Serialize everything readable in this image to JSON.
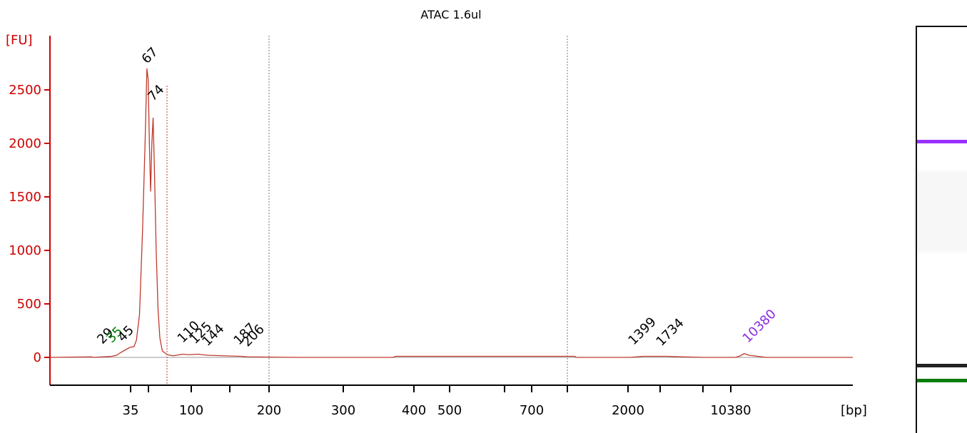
{
  "chart_data": {
    "type": "line",
    "title": "ATAC 1.6ul",
    "ylabel": "[FU]",
    "xlabel": "[bp]",
    "ylim": [
      -250,
      2800
    ],
    "yticks": [
      0,
      500,
      1000,
      1500,
      2000,
      2500
    ],
    "ytick_labels": [
      "0",
      "500",
      "1000",
      "1500",
      "2000",
      "2500"
    ],
    "x_tick_labels": [
      "35",
      "100",
      "200",
      "300",
      "400",
      "500",
      "700",
      "2000",
      "10380"
    ],
    "x_minor_ticks": 5,
    "series": [
      {
        "color": "#c0392b",
        "points": [
          [
            0,
            0
          ],
          [
            68,
            5
          ],
          [
            70,
            0
          ],
          [
            85,
            5
          ],
          [
            100,
            10
          ],
          [
            108,
            20
          ],
          [
            113,
            40
          ],
          [
            122,
            70
          ],
          [
            130,
            95
          ],
          [
            136,
            100
          ],
          [
            140,
            160
          ],
          [
            145,
            400
          ],
          [
            150,
            1200
          ],
          [
            154,
            2000
          ],
          [
            157,
            2700
          ],
          [
            159,
            2600
          ],
          [
            161,
            2000
          ],
          [
            163,
            1550
          ],
          [
            165,
            2000
          ],
          [
            167,
            2240
          ],
          [
            169,
            1800
          ],
          [
            172,
            1000
          ],
          [
            175,
            450
          ],
          [
            178,
            180
          ],
          [
            182,
            60
          ],
          [
            190,
            25
          ],
          [
            200,
            15
          ],
          [
            215,
            30
          ],
          [
            225,
            25
          ],
          [
            240,
            30
          ],
          [
            255,
            20
          ],
          [
            280,
            15
          ],
          [
            310,
            10
          ],
          [
            320,
            5
          ],
          [
            400,
            0
          ],
          [
            555,
            0
          ],
          [
            560,
            10
          ],
          [
            850,
            10
          ],
          [
            852,
            0
          ],
          [
            940,
            0
          ],
          [
            960,
            10
          ],
          [
            1000,
            10
          ],
          [
            1025,
            5
          ],
          [
            1060,
            0
          ],
          [
            1110,
            0
          ],
          [
            1118,
            15
          ],
          [
            1124,
            35
          ],
          [
            1132,
            20
          ],
          [
            1160,
            0
          ],
          [
            1300,
            0
          ]
        ]
      }
    ],
    "peaks": [
      {
        "label": "29",
        "x": 85,
        "y": 80,
        "color": "#000000"
      },
      {
        "label": "35",
        "x": 100,
        "y": 90,
        "color": "#008000"
      },
      {
        "label": "45",
        "x": 118,
        "y": 100,
        "color": "#000000"
      },
      {
        "label": "67",
        "x": 157,
        "y": 2700,
        "color": "#000000"
      },
      {
        "label": "74",
        "x": 167,
        "y": 2350,
        "color": "#000000"
      },
      {
        "label": "110",
        "x": 215,
        "y": 90,
        "color": "#000000"
      },
      {
        "label": "125",
        "x": 235,
        "y": 80,
        "color": "#000000"
      },
      {
        "label": "144",
        "x": 255,
        "y": 60,
        "color": "#000000"
      },
      {
        "label": "187",
        "x": 306,
        "y": 70,
        "color": "#000000"
      },
      {
        "label": "206",
        "x": 320,
        "y": 55,
        "color": "#000000"
      },
      {
        "label": "1399",
        "x": 945,
        "y": 70,
        "color": "#000000"
      },
      {
        "label": "1734",
        "x": 990,
        "y": 60,
        "color": "#000000"
      },
      {
        "label": "10380",
        "x": 1130,
        "y": 90,
        "color": "#8a2be2"
      }
    ],
    "markers": [
      {
        "label": "35",
        "x": 100,
        "color": "#008000"
      },
      {
        "label": "10380",
        "x": 1124,
        "color": "#8a2be2"
      }
    ],
    "grid": false
  },
  "gel": {
    "bands": [
      {
        "name": "upper-marker",
        "color": "#9b30ff",
        "position": 0.277
      },
      {
        "name": "sample-band",
        "color": "#222222",
        "position": 0.826
      },
      {
        "name": "lower-marker",
        "color": "#0a7d0a",
        "position": 0.863
      }
    ]
  }
}
